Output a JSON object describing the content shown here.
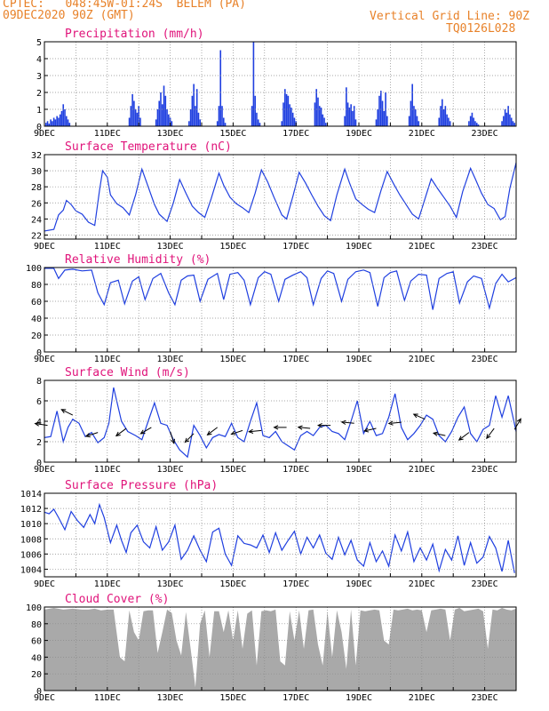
{
  "header": {
    "line1": "CPTEC:   048:45W-01:24S  BELEM (PA)",
    "line2": "09DEC2020 90Z (GMT)",
    "grid_note": "Vertical Grid Line: 90Z",
    "code": "TQ0126L028"
  },
  "colors": {
    "header": "#e8822a",
    "title": "#e0137a",
    "series": "#1f3fe0",
    "cloud": "#a9a9a9",
    "frame": "#000000",
    "grid": "#8a8a8a"
  },
  "chart_data": [
    {
      "type": "bar",
      "title": "Precipitation (mm/h)",
      "ylim": [
        0,
        5
      ],
      "yticks": [
        0,
        1,
        2,
        3,
        4,
        5
      ],
      "xticks": [
        "9DEC",
        "11DEC",
        "13DEC",
        "15DEC",
        "17DEC",
        "19DEC",
        "21DEC",
        "23DEC"
      ],
      "extra_tick": "",
      "xlim": [
        0,
        15
      ],
      "x": [
        0.05,
        0.1,
        0.15,
        0.2,
        0.25,
        0.3,
        0.35,
        0.4,
        0.45,
        0.5,
        0.55,
        0.6,
        0.65,
        0.7,
        0.75,
        0.8,
        2.7,
        2.75,
        2.8,
        2.85,
        2.9,
        2.95,
        3.0,
        3.05,
        3.55,
        3.6,
        3.65,
        3.7,
        3.75,
        3.8,
        3.85,
        3.9,
        3.95,
        4.0,
        4.05,
        4.6,
        4.65,
        4.7,
        4.75,
        4.8,
        4.85,
        4.9,
        4.95,
        5.5,
        5.55,
        5.6,
        5.65,
        5.7,
        5.75,
        6.6,
        6.65,
        6.7,
        6.75,
        6.8,
        6.85,
        7.55,
        7.6,
        7.65,
        7.7,
        7.75,
        7.8,
        7.85,
        7.9,
        7.95,
        8.0,
        8.6,
        8.65,
        8.7,
        8.75,
        8.8,
        8.85,
        8.9,
        8.95,
        9.55,
        9.6,
        9.65,
        9.7,
        9.75,
        9.8,
        9.85,
        9.9,
        10.55,
        10.6,
        10.65,
        10.7,
        10.75,
        10.8,
        10.85,
        10.9,
        11.6,
        11.65,
        11.7,
        11.75,
        11.8,
        11.85,
        11.9,
        12.55,
        12.6,
        12.65,
        12.7,
        12.75,
        12.8,
        12.85,
        12.9,
        13.5,
        13.55,
        13.6,
        13.65,
        13.7,
        13.75,
        13.8,
        14.55,
        14.6,
        14.65,
        14.7,
        14.75,
        14.8,
        14.85,
        14.9,
        14.95
      ],
      "values": [
        0.2,
        0.3,
        0.15,
        0.4,
        0.3,
        0.5,
        0.4,
        0.6,
        0.5,
        0.7,
        0.9,
        1.3,
        1.0,
        0.6,
        0.4,
        0.2,
        0.5,
        1.2,
        1.9,
        1.5,
        1.0,
        0.8,
        1.2,
        0.5,
        0.4,
        1.0,
        1.5,
        2.0,
        1.3,
        2.4,
        1.8,
        1.0,
        0.7,
        0.5,
        0.3,
        0.3,
        1.0,
        1.8,
        2.5,
        1.2,
        2.2,
        0.8,
        0.4,
        0.3,
        1.2,
        4.5,
        1.2,
        0.5,
        0.2,
        1.2,
        5.0,
        1.8,
        0.8,
        0.4,
        0.2,
        0.3,
        1.4,
        2.2,
        1.9,
        1.8,
        1.3,
        1.1,
        0.8,
        0.5,
        0.3,
        1.4,
        2.2,
        1.7,
        1.2,
        1.1,
        0.7,
        0.5,
        0.2,
        0.6,
        2.3,
        1.4,
        1.1,
        1.3,
        0.9,
        1.2,
        0.4,
        0.4,
        1.0,
        1.8,
        2.1,
        1.5,
        0.9,
        2.0,
        0.6,
        0.6,
        1.5,
        2.5,
        1.2,
        1.0,
        0.6,
        0.3,
        0.5,
        1.2,
        1.6,
        1.0,
        1.2,
        0.7,
        0.5,
        0.3,
        0.3,
        0.6,
        0.8,
        0.5,
        0.3,
        0.2,
        0.1,
        0.3,
        0.6,
        1.0,
        0.8,
        1.2,
        0.7,
        0.5,
        0.3,
        0.2
      ]
    },
    {
      "type": "line",
      "title": "Surface Temperature (nC)",
      "ylim": [
        21.5,
        32
      ],
      "yticks": [
        22,
        24,
        26,
        28,
        30,
        32
      ],
      "xticks": [
        "9DEC",
        "11DEC",
        "13DEC",
        "15DEC",
        "17DEC",
        "19DEC",
        "21DEC",
        "23DEC"
      ],
      "extra_tick": "",
      "xlim": [
        0,
        15
      ],
      "x": [
        0,
        0.3,
        0.45,
        0.6,
        0.7,
        0.85,
        1.0,
        1.2,
        1.4,
        1.6,
        1.75,
        1.85,
        2.0,
        2.1,
        2.3,
        2.5,
        2.7,
        2.9,
        3.1,
        3.3,
        3.5,
        3.65,
        3.9,
        4.1,
        4.3,
        4.5,
        4.7,
        4.9,
        5.1,
        5.3,
        5.55,
        5.7,
        5.9,
        6.1,
        6.3,
        6.5,
        6.7,
        6.9,
        7.1,
        7.3,
        7.55,
        7.7,
        7.9,
        8.1,
        8.3,
        8.5,
        8.7,
        8.9,
        9.1,
        9.3,
        9.55,
        9.7,
        9.9,
        10.1,
        10.3,
        10.5,
        10.7,
        10.9,
        11.1,
        11.3,
        11.55,
        11.7,
        11.9,
        12.1,
        12.3,
        12.5,
        12.7,
        12.9,
        13.1,
        13.3,
        13.55,
        13.7,
        13.9,
        14.1,
        14.3,
        14.5,
        14.65,
        14.8,
        15.0
      ],
      "values": [
        22.5,
        22.7,
        24.5,
        25.1,
        26.3,
        25.8,
        25.0,
        24.6,
        23.6,
        23.2,
        27.5,
        30.0,
        29.2,
        27.0,
        25.9,
        25.4,
        24.5,
        27.0,
        30.2,
        28.0,
        25.8,
        24.6,
        23.7,
        26.0,
        28.9,
        27.2,
        25.6,
        24.8,
        24.2,
        26.5,
        29.7,
        28.2,
        26.7,
        25.9,
        25.4,
        24.8,
        27.2,
        30.1,
        28.6,
        26.7,
        24.5,
        24.0,
        26.8,
        29.8,
        28.5,
        27.0,
        25.6,
        24.4,
        23.8,
        27.0,
        30.2,
        28.5,
        26.5,
        25.8,
        25.2,
        24.8,
        27.5,
        29.9,
        28.4,
        27.0,
        25.5,
        24.6,
        24.0,
        26.5,
        29.0,
        27.8,
        26.7,
        25.6,
        24.2,
        27.4,
        30.3,
        29.0,
        27.2,
        25.8,
        25.3,
        23.9,
        24.3,
        27.8,
        31.0
      ]
    },
    {
      "type": "line",
      "title": "Relative Humidity (%)",
      "ylim": [
        0,
        100
      ],
      "yticks": [
        0,
        20,
        40,
        60,
        80,
        100
      ],
      "xticks": [
        "9DEC",
        "11DEC",
        "13DEC",
        "15DEC",
        "17DEC",
        "19DEC",
        "21DEC",
        "23DEC"
      ],
      "extra_tick": "",
      "xlim": [
        0,
        15
      ],
      "x": [
        0,
        0.3,
        0.45,
        0.65,
        0.9,
        1.2,
        1.5,
        1.7,
        1.9,
        2.1,
        2.35,
        2.55,
        2.8,
        3.0,
        3.2,
        3.45,
        3.7,
        3.95,
        4.15,
        4.35,
        4.55,
        4.75,
        4.95,
        5.2,
        5.5,
        5.7,
        5.9,
        6.15,
        6.35,
        6.55,
        6.8,
        7.0,
        7.2,
        7.45,
        7.65,
        7.9,
        8.15,
        8.35,
        8.55,
        8.8,
        9.0,
        9.2,
        9.45,
        9.65,
        9.9,
        10.15,
        10.35,
        10.6,
        10.8,
        11.0,
        11.2,
        11.45,
        11.65,
        11.9,
        12.15,
        12.35,
        12.55,
        12.8,
        13.0,
        13.2,
        13.45,
        13.65,
        13.9,
        14.15,
        14.35,
        14.55,
        14.75,
        15.0
      ],
      "values": [
        99,
        99,
        87,
        97,
        98,
        96,
        97,
        70,
        56,
        82,
        85,
        57,
        84,
        89,
        62,
        87,
        93,
        70,
        56,
        85,
        90,
        91,
        60,
        86,
        93,
        62,
        92,
        94,
        85,
        56,
        88,
        95,
        92,
        60,
        86,
        91,
        95,
        88,
        56,
        87,
        96,
        93,
        60,
        86,
        95,
        97,
        94,
        54,
        88,
        94,
        96,
        61,
        84,
        92,
        91,
        50,
        87,
        93,
        95,
        58,
        83,
        90,
        87,
        52,
        81,
        92,
        83,
        88
      ]
    },
    {
      "type": "line",
      "title": "Surface Wind (m/s)",
      "ylim": [
        0,
        8
      ],
      "yticks": [
        0,
        2,
        4,
        6,
        8
      ],
      "xticks": [
        "9DEC",
        "11DEC",
        "13DEC",
        "15DEC",
        "17DEC",
        "19DEC",
        "21DEC",
        "23DEC"
      ],
      "extra_tick": "",
      "xlim": [
        0,
        15
      ],
      "x": [
        0,
        0.2,
        0.4,
        0.6,
        0.75,
        0.9,
        1.1,
        1.3,
        1.5,
        1.7,
        1.9,
        2.05,
        2.2,
        2.45,
        2.65,
        2.9,
        3.1,
        3.3,
        3.5,
        3.7,
        3.9,
        4.1,
        4.3,
        4.55,
        4.75,
        4.95,
        5.15,
        5.35,
        5.55,
        5.75,
        5.95,
        6.15,
        6.35,
        6.55,
        6.75,
        6.95,
        7.15,
        7.35,
        7.55,
        7.75,
        7.95,
        8.15,
        8.35,
        8.55,
        8.75,
        8.95,
        9.15,
        9.35,
        9.55,
        9.75,
        9.95,
        10.15,
        10.35,
        10.55,
        10.75,
        10.95,
        11.15,
        11.35,
        11.55,
        11.75,
        11.95,
        12.15,
        12.35,
        12.55,
        12.75,
        12.95,
        13.15,
        13.35,
        13.55,
        13.75,
        13.95,
        14.15,
        14.35,
        14.55,
        14.75,
        15.0
      ],
      "values": [
        2.4,
        2.5,
        5.0,
        2.0,
        3.4,
        4.2,
        3.8,
        2.5,
        2.9,
        1.9,
        2.4,
        3.8,
        7.3,
        4.0,
        3.0,
        2.6,
        2.2,
        4.0,
        5.8,
        3.8,
        3.6,
        2.2,
        1.2,
        0.5,
        3.6,
        2.6,
        1.4,
        2.4,
        2.7,
        2.5,
        3.8,
        2.4,
        2.0,
        4.0,
        5.8,
        2.6,
        2.4,
        3.0,
        2.0,
        1.6,
        1.2,
        2.6,
        3.0,
        2.6,
        3.4,
        3.6,
        3.0,
        2.8,
        2.2,
        4.0,
        6.0,
        2.8,
        4.0,
        2.6,
        2.8,
        4.4,
        6.7,
        3.4,
        2.2,
        2.8,
        3.6,
        4.6,
        4.2,
        2.6,
        2.0,
        3.0,
        4.4,
        5.4,
        2.8,
        2.0,
        3.2,
        3.6,
        6.5,
        4.4,
        6.5,
        3.0
      ],
      "arrow_x": [
        0.1,
        0.9,
        1.7,
        2.6,
        3.4,
        4.0,
        4.75,
        5.5,
        6.3,
        6.9,
        7.7,
        8.45,
        9.1,
        9.85,
        10.55,
        11.35,
        12.1,
        12.75,
        13.5,
        14.3,
        14.95
      ],
      "arrow_y": [
        3.6,
        4.6,
        2.9,
        3.3,
        3.4,
        3.0,
        2.8,
        3.4,
        3.1,
        3.1,
        3.4,
        3.3,
        3.6,
        3.8,
        3.3,
        3.9,
        4.2,
        2.6,
        2.9,
        3.3,
        3.2
      ],
      "arrow_dir": [
        [
          -1,
          0.15
        ],
        [
          -0.9,
          0.45
        ],
        [
          -0.95,
          -0.3
        ],
        [
          -0.8,
          -0.6
        ],
        [
          -0.85,
          -0.5
        ],
        [
          0.3,
          -0.95
        ],
        [
          -0.7,
          -0.7
        ],
        [
          -0.8,
          -0.6
        ],
        [
          -0.9,
          -0.3
        ],
        [
          -1,
          -0.1
        ],
        [
          -1,
          0
        ],
        [
          -0.95,
          0.1
        ],
        [
          -1,
          0
        ],
        [
          -1,
          0.1
        ],
        [
          -0.95,
          -0.2
        ],
        [
          -1,
          -0.1
        ],
        [
          -0.9,
          0.4
        ],
        [
          -0.95,
          0.2
        ],
        [
          -0.8,
          -0.6
        ],
        [
          -0.6,
          -0.8
        ],
        [
          0.5,
          0.85
        ]
      ]
    },
    {
      "type": "line",
      "title": "Surface Pressure (hPa)",
      "ylim": [
        1003,
        1014
      ],
      "yticks": [
        1004,
        1006,
        1008,
        1010,
        1012,
        1014
      ],
      "xticks": [
        "9DEC",
        "11DEC",
        "13DEC",
        "15DEC",
        "17DEC",
        "19DEC",
        "21DEC",
        "23DEC"
      ],
      "extra_tick": "",
      "xlim": [
        0,
        15
      ],
      "x": [
        0,
        0.15,
        0.3,
        0.45,
        0.65,
        0.85,
        1.05,
        1.25,
        1.45,
        1.6,
        1.75,
        1.9,
        2.1,
        2.3,
        2.45,
        2.6,
        2.75,
        2.95,
        3.15,
        3.35,
        3.55,
        3.75,
        3.95,
        4.15,
        4.35,
        4.55,
        4.75,
        4.95,
        5.15,
        5.35,
        5.55,
        5.75,
        5.95,
        6.15,
        6.35,
        6.55,
        6.75,
        6.95,
        7.15,
        7.35,
        7.55,
        7.75,
        7.95,
        8.15,
        8.35,
        8.55,
        8.75,
        8.95,
        9.15,
        9.35,
        9.55,
        9.75,
        9.95,
        10.15,
        10.35,
        10.55,
        10.75,
        10.95,
        11.15,
        11.35,
        11.55,
        11.75,
        11.95,
        12.15,
        12.35,
        12.55,
        12.75,
        12.95,
        13.15,
        13.35,
        13.55,
        13.75,
        13.95,
        14.15,
        14.35,
        14.55,
        14.75,
        14.95
      ],
      "values": [
        1011.5,
        1011.3,
        1011.9,
        1010.8,
        1009.2,
        1011.6,
        1010.4,
        1009.5,
        1011.2,
        1010.0,
        1012.5,
        1010.8,
        1007.5,
        1009.8,
        1007.8,
        1006.2,
        1008.8,
        1009.8,
        1007.6,
        1006.8,
        1009.6,
        1006.5,
        1007.6,
        1009.8,
        1005.3,
        1006.5,
        1008.4,
        1006.5,
        1005.0,
        1008.9,
        1009.4,
        1006.0,
        1004.5,
        1008.4,
        1007.4,
        1007.2,
        1006.8,
        1008.5,
        1006.2,
        1008.8,
        1006.5,
        1007.8,
        1009.0,
        1006.0,
        1008.2,
        1006.8,
        1008.5,
        1006.1,
        1005.3,
        1008.2,
        1005.9,
        1007.8,
        1005.2,
        1004.4,
        1007.5,
        1005.0,
        1006.4,
        1004.4,
        1008.5,
        1006.4,
        1008.9,
        1005.0,
        1006.8,
        1005.2,
        1007.3,
        1003.8,
        1006.6,
        1005.2,
        1008.4,
        1004.5,
        1007.5,
        1004.8,
        1005.6,
        1008.3,
        1006.8,
        1003.7,
        1007.8,
        1003.5
      ]
    },
    {
      "type": "area",
      "title": "Cloud Cover (%)",
      "ylim": [
        0,
        100
      ],
      "yticks": [
        0,
        20,
        40,
        60,
        80,
        100
      ],
      "xticks": [
        "9DEC",
        "11DEC",
        "13DEC",
        "15DEC",
        "17DEC",
        "19DEC",
        "21DEC",
        "23DEC"
      ],
      "extra_tick": "",
      "xlim": [
        0,
        15
      ],
      "x": [
        0,
        0.3,
        0.6,
        0.9,
        1.2,
        1.4,
        1.6,
        1.8,
        2.0,
        2.2,
        2.4,
        2.55,
        2.7,
        2.85,
        3.0,
        3.15,
        3.3,
        3.45,
        3.6,
        3.75,
        3.9,
        4.05,
        4.2,
        4.35,
        4.5,
        4.65,
        4.8,
        4.95,
        5.1,
        5.25,
        5.4,
        5.55,
        5.7,
        5.85,
        6.0,
        6.15,
        6.3,
        6.45,
        6.6,
        6.75,
        6.9,
        7.05,
        7.2,
        7.35,
        7.5,
        7.65,
        7.8,
        7.95,
        8.1,
        8.25,
        8.4,
        8.55,
        8.7,
        8.85,
        9.0,
        9.15,
        9.3,
        9.45,
        9.6,
        9.75,
        9.9,
        10.05,
        10.2,
        10.35,
        10.5,
        10.65,
        10.8,
        10.95,
        11.1,
        11.25,
        11.4,
        11.55,
        11.7,
        11.85,
        12.0,
        12.15,
        12.3,
        12.45,
        12.6,
        12.75,
        12.9,
        13.05,
        13.2,
        13.35,
        13.5,
        13.65,
        13.8,
        13.95,
        14.1,
        14.25,
        14.4,
        14.55,
        14.7,
        14.85,
        15.0
      ],
      "values": [
        97,
        99,
        97,
        98,
        97,
        97,
        98,
        96,
        97,
        97,
        40,
        35,
        96,
        70,
        60,
        95,
        96,
        96,
        45,
        70,
        97,
        93,
        60,
        42,
        94,
        50,
        4,
        80,
        96,
        40,
        95,
        95,
        70,
        96,
        60,
        96,
        50,
        92,
        96,
        30,
        95,
        96,
        95,
        97,
        35,
        30,
        95,
        60,
        96,
        50,
        96,
        97,
        55,
        30,
        95,
        40,
        96,
        70,
        26,
        97,
        30,
        96,
        95,
        96,
        97,
        96,
        60,
        55,
        97,
        96,
        97,
        98,
        96,
        97,
        96,
        70,
        96,
        97,
        98,
        97,
        60,
        97,
        99,
        95,
        96,
        97,
        98,
        95,
        50,
        97,
        96,
        99,
        97,
        96,
        98
      ]
    }
  ]
}
